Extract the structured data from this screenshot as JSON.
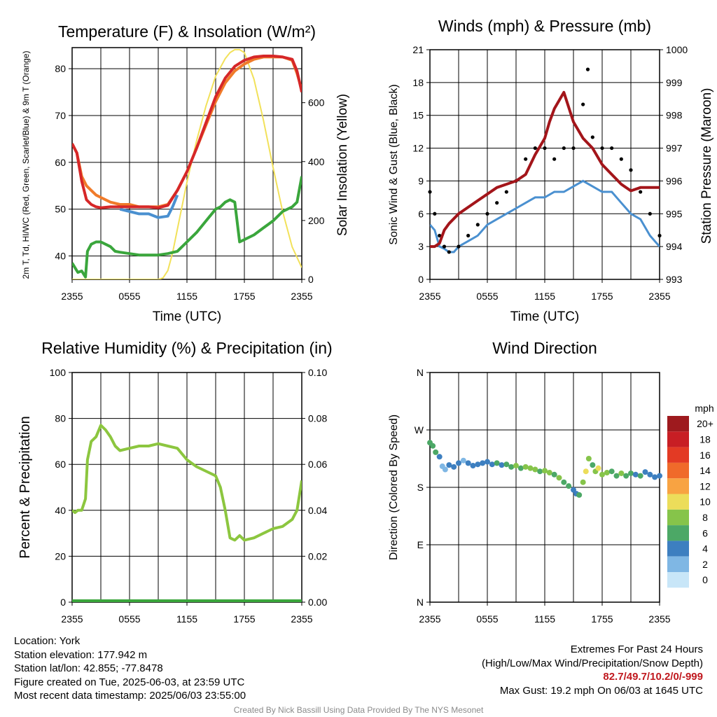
{
  "chart_data": [
    {
      "type": "line",
      "title": "Temperature (F) & Insolation (W/m²)",
      "xlabel": "Time (UTC)",
      "ylabel": "2m T, Td, HI/WC (Red, Green, Scarlet/Blue) & 9m T (Orange)",
      "y2label": "Solar Insolation (Yellow)",
      "x_ticks": [
        "2355",
        "0555",
        "1155",
        "1755",
        "2355"
      ],
      "y_ticks": [
        "40",
        "50",
        "60",
        "70",
        "80"
      ],
      "y2_ticks": [
        "0",
        "200",
        "400",
        "600"
      ],
      "ylim": [
        35,
        84.5
      ],
      "y2lim": [
        0,
        787
      ],
      "x_hours_range": [
        0,
        24
      ],
      "grid": true,
      "colors": {
        "temp": "#d62728",
        "temp_9m": "#f07b2a",
        "dewpoint": "#3aa63c",
        "windchill": "#4a90d0",
        "solar": "#f2e15a"
      },
      "series": [
        {
          "key": "temp_9m",
          "axis": "left",
          "x": [
            0,
            0.5,
            1,
            1.5,
            2,
            2.5,
            3,
            4,
            5,
            6,
            7,
            8,
            9,
            10,
            11,
            12,
            13,
            14,
            15,
            16,
            17,
            18,
            19,
            20,
            21,
            22,
            23,
            23.5,
            24
          ],
          "y": [
            64,
            62,
            57,
            55,
            54,
            53,
            52.5,
            51.5,
            51,
            51,
            50.5,
            50.5,
            50.5,
            51,
            54,
            58,
            63,
            68,
            73,
            77,
            79.5,
            81,
            82,
            82.5,
            82.5,
            82.5,
            81.8,
            79,
            75.5
          ]
        },
        {
          "key": "temp",
          "axis": "left",
          "x": [
            0,
            0.5,
            1,
            1.5,
            2,
            2.5,
            3,
            4,
            5,
            6,
            7,
            8,
            9,
            10,
            11,
            12,
            13,
            14,
            15,
            16,
            17,
            18,
            19,
            20,
            21,
            22,
            23,
            23.5,
            24
          ],
          "y": [
            64,
            62,
            56,
            52,
            51,
            50.5,
            50.3,
            50.5,
            50.5,
            50.5,
            50.5,
            50.5,
            50.3,
            50.8,
            54,
            58,
            63,
            68.5,
            74,
            78,
            80.5,
            81.8,
            82.5,
            82.7,
            82.7,
            82.5,
            82,
            79.5,
            75
          ]
        },
        {
          "key": "windchill",
          "axis": "left",
          "x": [
            5,
            6,
            7,
            8,
            9,
            10,
            10.5,
            11
          ],
          "y": [
            50,
            49.5,
            49,
            49,
            48.2,
            48.5,
            50.5,
            53
          ]
        },
        {
          "key": "dewpoint",
          "axis": "left",
          "x": [
            0,
            0.3,
            0.6,
            1,
            1.4,
            1.6,
            2,
            2.5,
            3,
            3.5,
            4,
            4.5,
            5,
            6,
            7,
            8,
            9,
            10,
            11,
            12,
            13,
            14,
            15,
            15.5,
            16,
            16.5,
            17,
            17.5,
            18,
            19,
            20,
            21,
            22,
            23,
            23.5,
            24
          ],
          "y": [
            38.5,
            37.5,
            36.5,
            36.8,
            35.5,
            41,
            42.5,
            43,
            43,
            42.5,
            42,
            41,
            40.8,
            40.5,
            40.2,
            40.2,
            40.2,
            40.5,
            41,
            43,
            45,
            47.5,
            50,
            50.5,
            51.5,
            52,
            51.5,
            43,
            43.5,
            44.5,
            46,
            47.5,
            49.5,
            50.5,
            51.5,
            57
          ]
        },
        {
          "key": "solar",
          "axis": "right",
          "x": [
            0,
            2,
            4,
            6,
            8,
            9,
            9.5,
            10,
            10.5,
            11,
            12,
            13,
            14,
            15,
            16,
            16.5,
            17,
            17.5,
            18,
            19,
            20,
            21,
            22,
            23,
            24
          ],
          "y": [
            0,
            0,
            0,
            0,
            0,
            0,
            5,
            30,
            90,
            170,
            330,
            470,
            590,
            690,
            750,
            770,
            780,
            780,
            770,
            680,
            540,
            380,
            230,
            110,
            40
          ]
        }
      ]
    },
    {
      "type": "line",
      "title": "Winds (mph) & Pressure (mb)",
      "xlabel": "Time (UTC)",
      "ylabel": "Sonic Wind & Gust (Blue, Black)",
      "y2label": "Station Pressure (Maroon)",
      "x_ticks": [
        "2355",
        "0555",
        "1155",
        "1755",
        "2355"
      ],
      "y_ticks": [
        "0",
        "3",
        "6",
        "9",
        "12",
        "15",
        "18",
        "21"
      ],
      "y2_ticks": [
        "993",
        "994",
        "995",
        "996",
        "997",
        "998",
        "999",
        "1000"
      ],
      "ylim": [
        0,
        21
      ],
      "y2lim": [
        993,
        1000
      ],
      "x_hours_range": [
        0,
        24
      ],
      "grid": true,
      "colors": {
        "wind": "#4a90d0",
        "gust": "#000000",
        "pressure": "#a3151a"
      },
      "series": [
        {
          "key": "wind",
          "axis": "left",
          "x": [
            0,
            0.5,
            1,
            1.5,
            2,
            2.5,
            3,
            4,
            5,
            6,
            7,
            8,
            9,
            10,
            11,
            12,
            13,
            14,
            15,
            16,
            17,
            18,
            19,
            20,
            21,
            22,
            23,
            24
          ],
          "y": [
            5,
            4.5,
            3,
            2.8,
            2.5,
            2.5,
            3,
            3.5,
            4,
            5,
            5.5,
            6,
            6.5,
            7,
            7.5,
            7.5,
            8,
            8,
            8.5,
            9,
            8.5,
            8,
            8,
            7,
            6,
            5.5,
            4,
            3
          ]
        },
        {
          "key": "gust",
          "axis": "left",
          "x": [
            0,
            0.5,
            1,
            1.5,
            2,
            3,
            4,
            5,
            6,
            7,
            8,
            9,
            10,
            11,
            12,
            13,
            14,
            15,
            16,
            16.5,
            17,
            18,
            19,
            20,
            21,
            22,
            23,
            24
          ],
          "y": [
            8,
            6,
            4,
            3,
            2.5,
            3,
            4,
            5,
            6,
            7,
            8,
            9,
            11,
            12,
            12,
            11,
            12,
            12,
            16,
            19.2,
            13,
            12,
            12,
            11,
            10,
            8,
            6,
            4
          ]
        },
        {
          "key": "pressure",
          "axis": "right",
          "x": [
            0,
            0.5,
            1,
            1.5,
            2,
            3,
            4,
            5,
            6,
            7,
            8,
            9,
            10,
            11,
            12,
            12.5,
            13,
            14,
            15,
            16,
            17,
            18,
            19,
            20,
            21,
            22,
            23,
            24
          ],
          "y": [
            994,
            994,
            994.1,
            994.5,
            994.7,
            995,
            995.2,
            995.4,
            995.6,
            995.8,
            995.9,
            996,
            996.2,
            996.8,
            997.3,
            997.8,
            998.2,
            998.7,
            997.8,
            997.3,
            997,
            996.5,
            996.2,
            995.9,
            995.7,
            995.8,
            995.8,
            995.8
          ]
        }
      ]
    },
    {
      "type": "line",
      "title": "Relative Humidity (%) & Precipitation (in)",
      "xlabel": "",
      "ylabel": "Percent & Precipitation",
      "x_ticks": [
        "2355",
        "0555",
        "1155",
        "1755",
        "2355"
      ],
      "y_ticks": [
        "0",
        "20",
        "40",
        "60",
        "80",
        "100"
      ],
      "y2_ticks": [
        "0.00",
        "0.02",
        "0.04",
        "0.06",
        "0.08",
        "0.10"
      ],
      "ylim": [
        0,
        100
      ],
      "y2lim": [
        0,
        0.1
      ],
      "x_hours_range": [
        0,
        24
      ],
      "grid": true,
      "colors": {
        "rh": "#8cc63f",
        "precip": "#3aa63c"
      },
      "series": [
        {
          "key": "rh",
          "axis": "left",
          "x": [
            0,
            0.3,
            0.6,
            1,
            1.4,
            1.6,
            2,
            2.5,
            3,
            3.5,
            4,
            4.5,
            5,
            6,
            7,
            8,
            9,
            10,
            11,
            12,
            13,
            14,
            15,
            15.5,
            16,
            16.5,
            17,
            17.5,
            18,
            19,
            20,
            21,
            22,
            23,
            23.5,
            24
          ],
          "y": [
            40,
            39,
            40,
            40,
            45,
            62,
            70,
            72,
            77,
            75,
            72,
            68,
            66,
            67,
            68,
            68,
            69,
            68,
            67,
            62,
            59,
            57,
            55,
            50,
            40,
            28,
            27,
            29,
            27,
            28,
            30,
            32,
            33,
            36,
            40,
            53
          ]
        },
        {
          "key": "precip",
          "axis": "right",
          "x": [
            0,
            24
          ],
          "y": [
            0,
            0
          ]
        }
      ]
    },
    {
      "type": "scatter",
      "title": "Wind Direction",
      "xlabel": "",
      "ylabel": "Direction (Colored By Speed)",
      "x_ticks": [
        "2355",
        "0555",
        "1155",
        "1755",
        "2355"
      ],
      "y_ticks": [
        "N",
        "E",
        "S",
        "W",
        "N"
      ],
      "ylim": [
        0,
        360
      ],
      "x_hours_range": [
        0,
        24
      ],
      "grid": true,
      "legend_title": "mph",
      "legend_labels": [
        "20+",
        "18",
        "16",
        "14",
        "12",
        "10",
        "8",
        "6",
        "4",
        "2",
        "0"
      ],
      "legend_colors": [
        "#9e1a1e",
        "#c81e24",
        "#e33a24",
        "#f06a2a",
        "#f8a342",
        "#ecdd5a",
        "#86c44a",
        "#4ca866",
        "#3d7fc0",
        "#7fb7e4",
        "#c8e6f8"
      ],
      "series": [
        {
          "key": "direction",
          "x": [
            0,
            0.3,
            0.6,
            1,
            1.3,
            1.6,
            2,
            2.5,
            3,
            3.5,
            4,
            4.5,
            5,
            5.5,
            6,
            6.5,
            7,
            7.5,
            8,
            8.5,
            9,
            9.5,
            10,
            10.5,
            11,
            11.5,
            12,
            12.5,
            13,
            13.5,
            14,
            14.5,
            15,
            15.3,
            15.6,
            16,
            16.3,
            16.6,
            17,
            17.3,
            17.6,
            18,
            18.5,
            19,
            19.5,
            20,
            20.5,
            21,
            21.5,
            22,
            22.5,
            23,
            23.5,
            24
          ],
          "y": [
            250,
            245,
            235,
            228,
            213,
            208,
            215,
            212,
            218,
            222,
            218,
            214,
            216,
            218,
            220,
            216,
            218,
            215,
            216,
            212,
            214,
            210,
            212,
            210,
            208,
            205,
            206,
            203,
            200,
            195,
            188,
            182,
            176,
            170,
            168,
            188,
            205,
            225,
            215,
            205,
            210,
            200,
            203,
            205,
            198,
            202,
            198,
            202,
            200,
            198,
            204,
            200,
            196,
            198
          ],
          "speed": [
            6,
            6,
            5,
            3,
            2,
            2,
            3,
            4,
            3,
            2,
            3,
            3,
            4,
            4,
            3,
            4,
            5,
            4,
            6,
            5,
            7,
            6,
            8,
            7,
            8,
            6,
            7,
            8,
            6,
            8,
            6,
            5,
            4,
            3,
            6,
            7,
            10,
            8,
            6,
            7,
            9,
            8,
            7,
            6,
            5,
            7,
            6,
            5,
            4,
            5,
            4,
            4,
            3,
            3
          ]
        }
      ]
    }
  ],
  "info": {
    "location": "Location: York",
    "elevation": "Station elevation: 177.942 m",
    "latlon": "Station lat/lon: 42.855; -77.8478",
    "created": "Figure created on Tue, 2025-06-03, at 23:59 UTC",
    "recent": "Most recent data timestamp: 2025/06/03 23:55:00",
    "extremes_title": "Extremes For Past 24 Hours",
    "extremes_key": "(High/Low/Max Wind/Precipitation/Snow Depth)",
    "extremes_values": "82.7/49.7/10.2/0/-999",
    "extremes_color": "#c0191f",
    "max_gust": "Max Gust: 19.2 mph On 06/03 at 1645 UTC"
  },
  "credit": "Created By Nick Bassill Using Data Provided By The NYS Mesonet"
}
